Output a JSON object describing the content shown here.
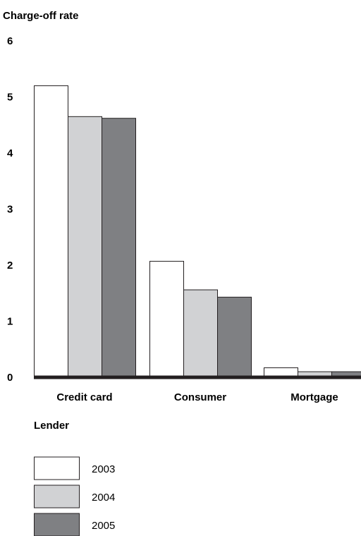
{
  "chart_data": {
    "type": "bar",
    "title": "Charge-off rate",
    "xlabel": "Lender",
    "ylabel": "",
    "ylim": [
      0,
      6
    ],
    "yticks": [
      0,
      1,
      2,
      3,
      4,
      5,
      6
    ],
    "categories": [
      "Credit card",
      "Consumer",
      "Mortgage"
    ],
    "series": [
      {
        "name": "2003",
        "values": [
          5.2,
          2.07,
          0.17
        ]
      },
      {
        "name": "2004",
        "values": [
          4.65,
          1.56,
          0.1
        ]
      },
      {
        "name": "2005",
        "values": [
          4.62,
          1.43,
          0.1
        ]
      }
    ],
    "colors": [
      "#ffffff",
      "#d1d2d4",
      "#7f8083"
    ],
    "legend": "bottom-left",
    "grid": false
  }
}
